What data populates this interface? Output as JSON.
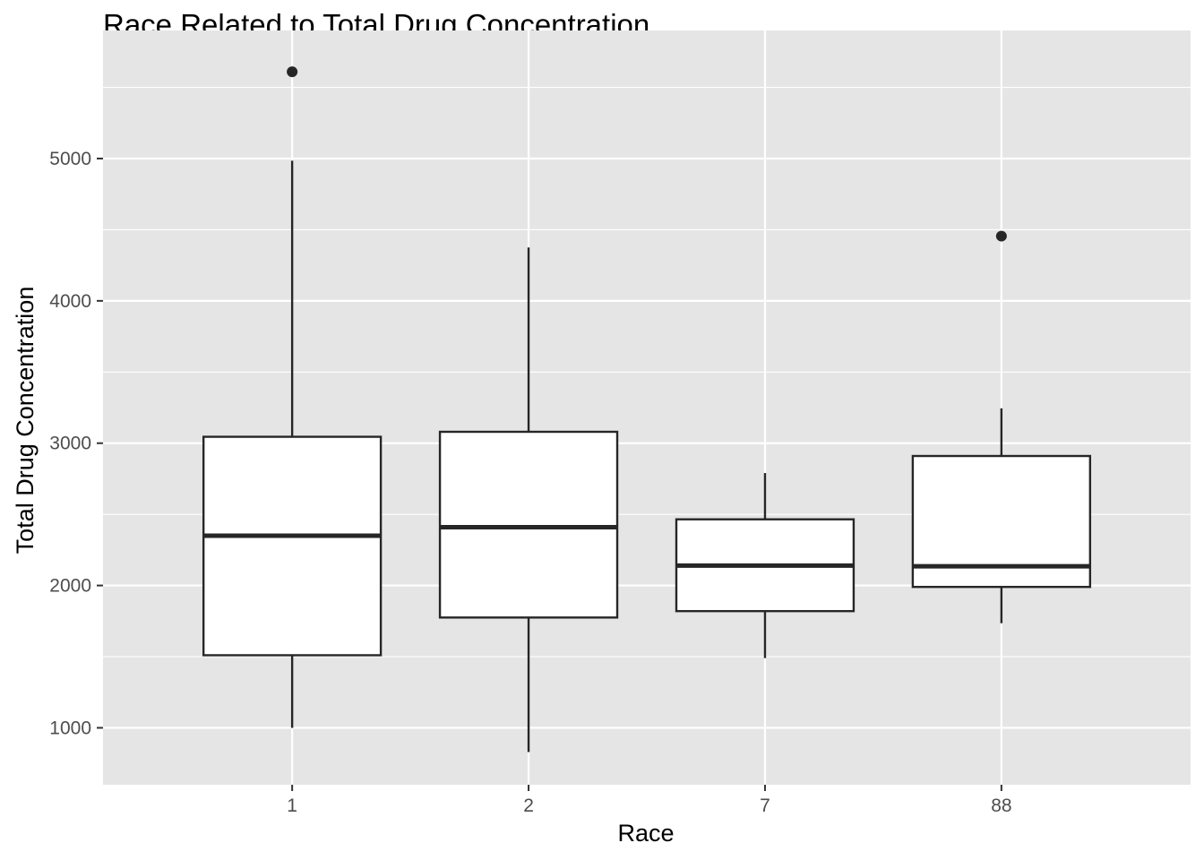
{
  "chart_data": {
    "type": "boxplot",
    "title": "Race Related to Total Drug Concentration",
    "xlabel": "Race",
    "ylabel": "Total Drug Concentration",
    "categories": [
      "1",
      "2",
      "7",
      "88"
    ],
    "ylim": [
      600,
      5900
    ],
    "yticks": [
      1000,
      2000,
      3000,
      4000,
      5000
    ],
    "ytick_labels": [
      "1000",
      "2000",
      "3000",
      "4000",
      "5000"
    ],
    "grid": true,
    "boxes": [
      {
        "category": "1",
        "whisker_low": 1000,
        "q1": 1510,
        "median": 2350,
        "q3": 3045,
        "whisker_high": 4985,
        "outliers": [
          5610
        ]
      },
      {
        "category": "2",
        "whisker_low": 830,
        "q1": 1775,
        "median": 2410,
        "q3": 3080,
        "whisker_high": 4375,
        "outliers": []
      },
      {
        "category": "7",
        "whisker_low": 1490,
        "q1": 1820,
        "median": 2140,
        "q3": 2465,
        "whisker_high": 2790,
        "outliers": []
      },
      {
        "category": "88",
        "whisker_low": 1735,
        "q1": 1990,
        "median": 2135,
        "q3": 2910,
        "whisker_high": 3245,
        "outliers": [
          4455
        ]
      }
    ],
    "colors": {
      "panel": "#e5e5e5",
      "grid": "#ffffff",
      "box_fill": "#ffffff",
      "box_line": "#262626"
    }
  }
}
